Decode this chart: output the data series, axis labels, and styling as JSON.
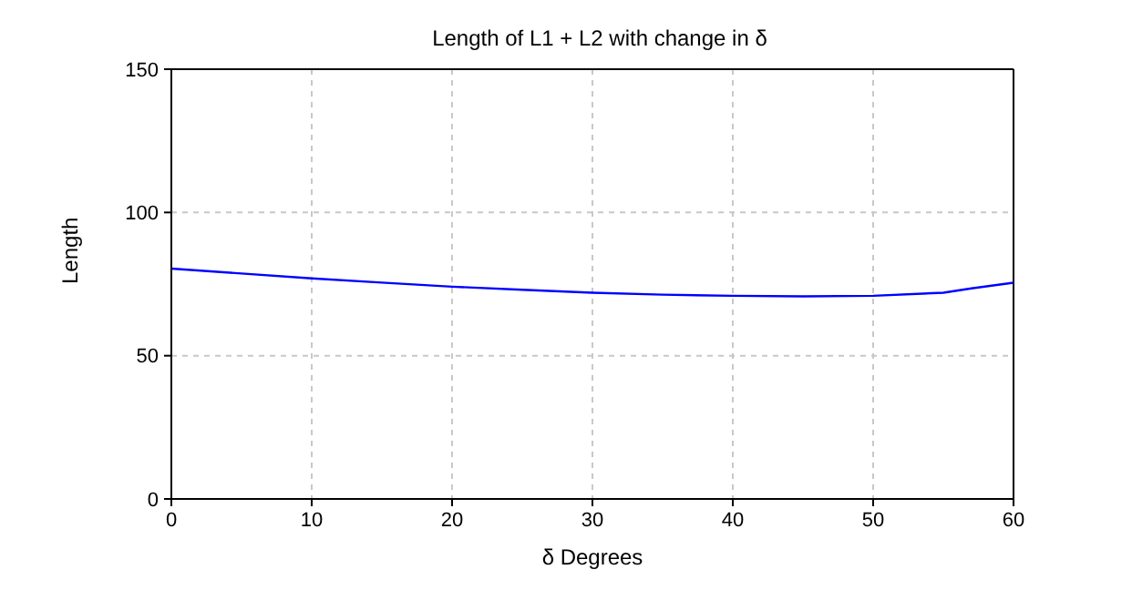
{
  "chart_data": {
    "type": "line",
    "title": "Length of L1 + L2 with change in δ",
    "xlabel": "δ Degrees",
    "ylabel": "Length",
    "x": [
      0,
      5,
      10,
      15,
      20,
      25,
      30,
      35,
      40,
      45,
      50,
      55,
      57,
      60
    ],
    "series": [
      {
        "color": "#0000ff",
        "values": [
          80.4,
          78.7,
          77.0,
          75.5,
          74.1,
          73.0,
          72.0,
          71.3,
          70.9,
          70.7,
          70.9,
          72.0,
          73.5,
          75.5
        ]
      }
    ],
    "xlim": [
      0,
      60
    ],
    "xticks": [
      0,
      10,
      20,
      30,
      40,
      50,
      60
    ],
    "ylim": [
      0,
      150
    ],
    "yticks": [
      0,
      50,
      100,
      150
    ],
    "grid": true,
    "marker": "none",
    "line_style": "solid"
  }
}
